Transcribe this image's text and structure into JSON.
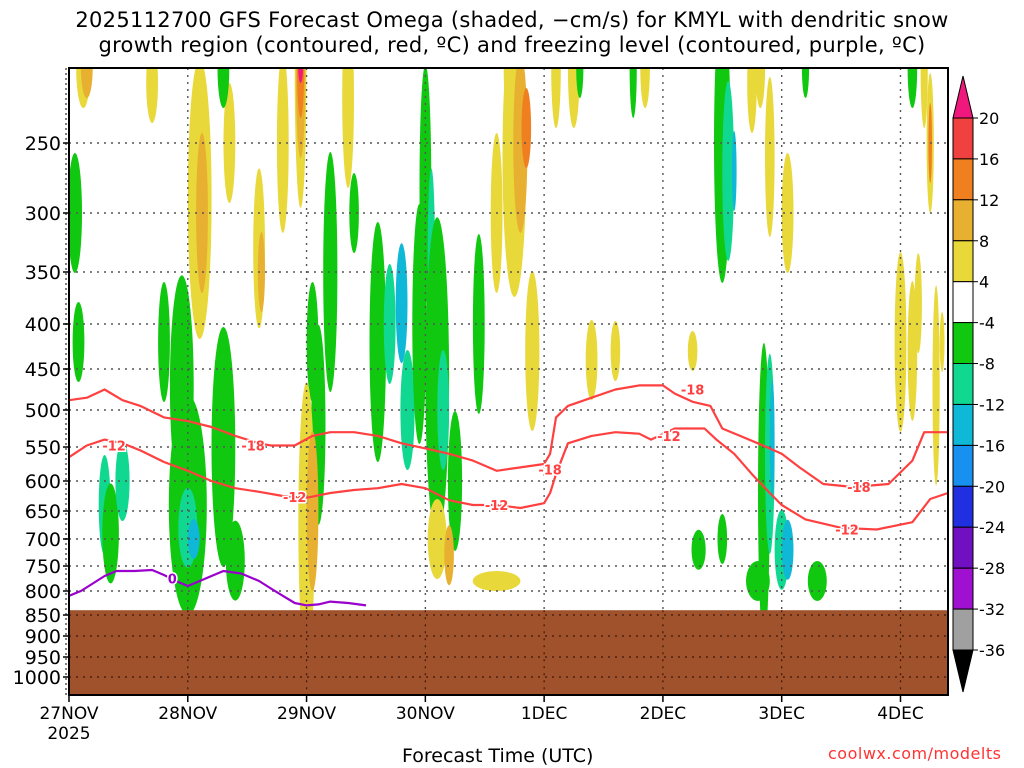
{
  "title": {
    "line1": "2025112700 GFS Forecast Omega (shaded, −cm/s) for KMYL with dendritic snow",
    "line2": "growth region (contoured, red, ºC) and freezing level (contoured, purple, ºC)"
  },
  "xaxis_title": "Forecast Time (UTC)",
  "credit": "coolwx.com/modelts",
  "colors": {
    "ground": "#a0522d",
    "dgz_contour": "#ff4040",
    "freezing_contour": "#9900cc",
    "grid": "#555555"
  },
  "chart_data": {
    "type": "heatmap",
    "x_ticks": [
      "27NOV",
      "28NOV",
      "29NOV",
      "30NOV",
      "1DEC",
      "2DEC",
      "3DEC",
      "4DEC"
    ],
    "x_start_year": "2025",
    "x_range_days": [
      0,
      7.4
    ],
    "y_ticks": [
      250,
      300,
      350,
      400,
      450,
      500,
      550,
      600,
      650,
      700,
      750,
      800,
      850,
      900,
      950,
      1000
    ],
    "y_range_hPa": [
      200,
      1050
    ],
    "surface_pressure_hPa": 840,
    "colorbar": {
      "labels": [
        "20",
        "16",
        "12",
        "8",
        "4",
        "-4",
        "-8",
        "-12",
        "-16",
        "-20",
        "-24",
        "-28",
        "-32",
        "-36"
      ],
      "bins": [
        {
          "color": "#f0187c"
        },
        {
          "color": "#f04040"
        },
        {
          "color": "#f07f20"
        },
        {
          "color": "#e8b030"
        },
        {
          "color": "#e8d83a"
        },
        {
          "color": "#ffffff"
        },
        {
          "color": "#10c810"
        },
        {
          "color": "#10d890"
        },
        {
          "color": "#10b8d8"
        },
        {
          "color": "#1890f0"
        },
        {
          "color": "#2030e0"
        },
        {
          "color": "#7010c0"
        },
        {
          "color": "#a010d0"
        },
        {
          "color": "#a0a0a0"
        },
        {
          "color": "#000000"
        }
      ]
    },
    "dgz_contours": [
      {
        "label": "-18",
        "points": [
          [
            0,
            488
          ],
          [
            0.15,
            485
          ],
          [
            0.3,
            475
          ],
          [
            0.45,
            488
          ],
          [
            0.6,
            495
          ],
          [
            0.8,
            510
          ],
          [
            1.0,
            515
          ],
          [
            1.2,
            523
          ],
          [
            1.4,
            535
          ],
          [
            1.6,
            545
          ],
          [
            1.7,
            548
          ],
          [
            1.9,
            548
          ],
          [
            2.05,
            535
          ],
          [
            2.2,
            530
          ],
          [
            2.4,
            530
          ],
          [
            2.6,
            535
          ],
          [
            2.8,
            545
          ],
          [
            3.0,
            552
          ],
          [
            3.2,
            560
          ],
          [
            3.4,
            570
          ],
          [
            3.6,
            585
          ],
          [
            3.8,
            580
          ],
          [
            4.0,
            575
          ],
          [
            4.05,
            560
          ],
          [
            4.1,
            510
          ],
          [
            4.2,
            495
          ],
          [
            4.4,
            485
          ],
          [
            4.6,
            475
          ],
          [
            4.8,
            470
          ],
          [
            5.0,
            470
          ],
          [
            5.1,
            480
          ],
          [
            5.25,
            490
          ],
          [
            5.4,
            495
          ],
          [
            5.5,
            525
          ],
          [
            5.65,
            535
          ],
          [
            5.8,
            545
          ],
          [
            6.0,
            560
          ],
          [
            6.15,
            580
          ],
          [
            6.35,
            605
          ],
          [
            6.6,
            610
          ],
          [
            6.9,
            605
          ],
          [
            7.1,
            570
          ],
          [
            7.2,
            530
          ],
          [
            7.4,
            530
          ]
        ],
        "labels_at": [
          [
            1.55,
            548
          ],
          [
            4.05,
            583
          ],
          [
            5.25,
            475
          ],
          [
            6.65,
            610
          ]
        ]
      },
      {
        "label": "-12",
        "points": [
          [
            0,
            565
          ],
          [
            0.15,
            548
          ],
          [
            0.3,
            540
          ],
          [
            0.45,
            545
          ],
          [
            0.6,
            555
          ],
          [
            0.8,
            572
          ],
          [
            1.0,
            585
          ],
          [
            1.2,
            600
          ],
          [
            1.4,
            612
          ],
          [
            1.6,
            618
          ],
          [
            1.8,
            625
          ],
          [
            2.0,
            628
          ],
          [
            2.2,
            620
          ],
          [
            2.4,
            615
          ],
          [
            2.6,
            612
          ],
          [
            2.8,
            605
          ],
          [
            3.0,
            612
          ],
          [
            3.2,
            632
          ],
          [
            3.4,
            640
          ],
          [
            3.6,
            640
          ],
          [
            3.8,
            645
          ],
          [
            4.0,
            637
          ],
          [
            4.05,
            620
          ],
          [
            4.1,
            590
          ],
          [
            4.2,
            545
          ],
          [
            4.4,
            535
          ],
          [
            4.6,
            530
          ],
          [
            4.8,
            532
          ],
          [
            4.9,
            540
          ],
          [
            5.1,
            525
          ],
          [
            5.35,
            525
          ],
          [
            5.45,
            540
          ],
          [
            5.6,
            560
          ],
          [
            5.75,
            590
          ],
          [
            5.9,
            620
          ],
          [
            6.0,
            640
          ],
          [
            6.2,
            665
          ],
          [
            6.5,
            680
          ],
          [
            6.8,
            683
          ],
          [
            7.1,
            670
          ],
          [
            7.25,
            630
          ],
          [
            7.4,
            620
          ]
        ],
        "labels_at": [
          [
            0.38,
            548
          ],
          [
            1.9,
            627
          ],
          [
            3.6,
            640
          ],
          [
            5.05,
            535
          ],
          [
            6.55,
            683
          ]
        ]
      }
    ],
    "freezing_contours": [
      {
        "label": "0",
        "points": [
          [
            0,
            810
          ],
          [
            0.1,
            800
          ],
          [
            0.2,
            785
          ],
          [
            0.3,
            770
          ],
          [
            0.4,
            760
          ],
          [
            0.55,
            760
          ],
          [
            0.7,
            758
          ],
          [
            0.8,
            768
          ],
          [
            0.9,
            780
          ],
          [
            1.0,
            790
          ],
          [
            1.1,
            780
          ],
          [
            1.2,
            770
          ],
          [
            1.3,
            760
          ],
          [
            1.45,
            765
          ],
          [
            1.6,
            780
          ],
          [
            1.7,
            795
          ],
          [
            1.8,
            810
          ],
          [
            1.9,
            825
          ],
          [
            2.0,
            830
          ],
          [
            2.1,
            828
          ],
          [
            2.2,
            822
          ],
          [
            2.35,
            825
          ],
          [
            2.5,
            830
          ]
        ],
        "labels_at": [
          [
            0.87,
            775
          ]
        ]
      }
    ]
  }
}
